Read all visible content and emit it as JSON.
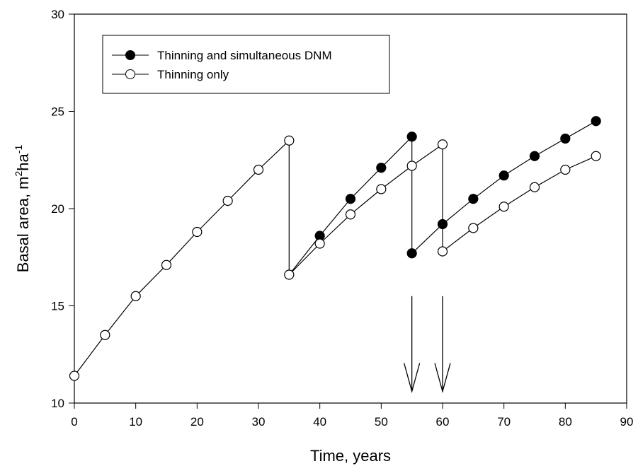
{
  "chart_data": {
    "type": "line",
    "xlabel": "Time, years",
    "ylabel": {
      "prefix": "Basal area, m",
      "sup1": "2",
      "mid": "ha",
      "sup2": "-1"
    },
    "xlim": [
      0,
      90
    ],
    "ylim": [
      10,
      30
    ],
    "xticks": [
      0,
      10,
      20,
      30,
      40,
      50,
      60,
      70,
      80,
      90
    ],
    "yticks": [
      10,
      15,
      20,
      25,
      30
    ],
    "legend_position": "top-left",
    "grid": false,
    "series": [
      {
        "name": "Thinning and simultaneous DNM",
        "marker": "filled-circle",
        "segments": [
          [
            [
              35,
              16.6
            ],
            [
              40,
              18.6
            ],
            [
              45,
              20.5
            ],
            [
              50,
              22.1
            ],
            [
              55,
              23.7
            ],
            [
              55,
              17.7
            ],
            [
              60,
              19.2
            ],
            [
              65,
              20.5
            ],
            [
              70,
              21.7
            ],
            [
              75,
              22.7
            ],
            [
              80,
              23.6
            ],
            [
              85,
              24.5
            ]
          ]
        ],
        "marked_points": [
          [
            40,
            18.6
          ],
          [
            45,
            20.5
          ],
          [
            50,
            22.1
          ],
          [
            55,
            23.7
          ],
          [
            55,
            17.7
          ],
          [
            60,
            19.2
          ],
          [
            65,
            20.5
          ],
          [
            70,
            21.7
          ],
          [
            75,
            22.7
          ],
          [
            80,
            23.6
          ],
          [
            85,
            24.5
          ]
        ]
      },
      {
        "name": "Thinning only",
        "marker": "open-circle",
        "segments": [
          [
            [
              0,
              11.4
            ],
            [
              5,
              13.5
            ],
            [
              10,
              15.5
            ],
            [
              15,
              17.1
            ],
            [
              20,
              18.8
            ],
            [
              25,
              20.4
            ],
            [
              30,
              22.0
            ],
            [
              35,
              23.5
            ],
            [
              35,
              16.6
            ],
            [
              40,
              18.2
            ],
            [
              45,
              19.7
            ],
            [
              50,
              21.0
            ],
            [
              55,
              22.2
            ],
            [
              60,
              23.3
            ],
            [
              60,
              17.8
            ],
            [
              65,
              19.0
            ],
            [
              70,
              20.1
            ],
            [
              75,
              21.1
            ],
            [
              80,
              22.0
            ],
            [
              85,
              22.7
            ]
          ]
        ],
        "marked_points": [
          [
            0,
            11.4
          ],
          [
            5,
            13.5
          ],
          [
            10,
            15.5
          ],
          [
            15,
            17.1
          ],
          [
            20,
            18.8
          ],
          [
            25,
            20.4
          ],
          [
            30,
            22.0
          ],
          [
            35,
            23.5
          ],
          [
            35,
            16.6
          ],
          [
            40,
            18.2
          ],
          [
            45,
            19.7
          ],
          [
            50,
            21.0
          ],
          [
            55,
            22.2
          ],
          [
            60,
            23.3
          ],
          [
            60,
            17.8
          ],
          [
            65,
            19.0
          ],
          [
            70,
            20.1
          ],
          [
            75,
            21.1
          ],
          [
            80,
            22.0
          ],
          [
            85,
            22.7
          ]
        ]
      }
    ],
    "annotations": [
      {
        "type": "down-arrow",
        "x": 55,
        "y_from": 15.5,
        "y_to": 10.6
      },
      {
        "type": "down-arrow",
        "x": 60,
        "y_from": 15.5,
        "y_to": 10.6
      }
    ]
  }
}
